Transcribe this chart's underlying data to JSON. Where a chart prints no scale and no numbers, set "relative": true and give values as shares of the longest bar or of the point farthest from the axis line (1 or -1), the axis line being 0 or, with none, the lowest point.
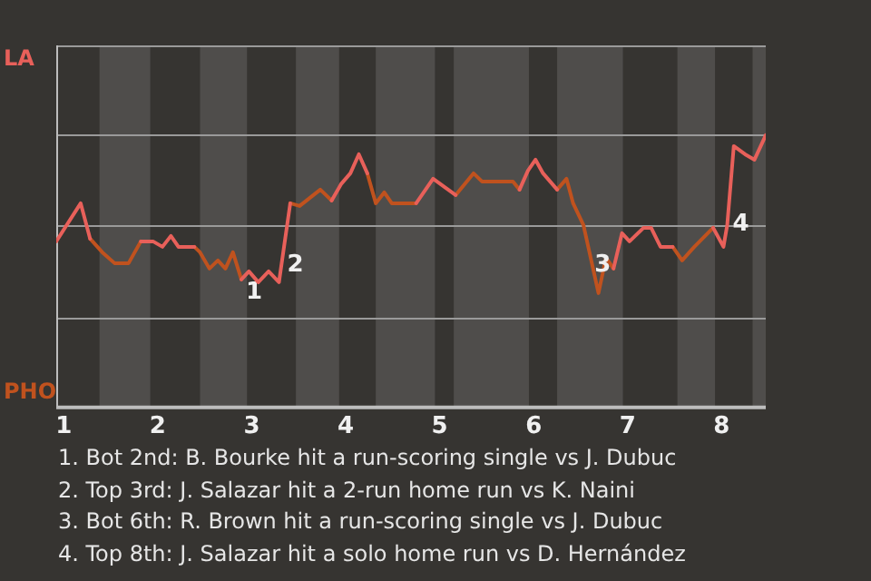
{
  "chart_data": {
    "type": "line",
    "relative": true,
    "x": [
      0.92,
      1.18,
      1.28,
      1.41,
      1.54,
      1.69,
      1.82,
      1.95,
      2.05,
      2.14,
      2.22,
      2.39,
      2.45,
      2.55,
      2.64,
      2.72,
      2.8,
      2.89,
      2.97,
      3.07,
      3.18,
      3.29,
      3.41,
      3.51,
      3.73,
      3.85,
      3.95,
      4.05,
      4.14,
      4.23,
      4.32,
      4.41,
      4.49,
      4.75,
      4.93,
      5.09,
      5.17,
      5.36,
      5.45,
      5.78,
      5.85,
      5.94,
      6.02,
      6.1,
      6.25,
      6.35,
      6.42,
      6.53,
      6.69,
      6.77,
      6.85,
      6.94,
      7.02,
      7.17,
      7.25,
      7.35,
      7.48,
      7.58,
      7.71,
      7.91,
      8.02,
      8.06,
      8.13,
      8.25,
      8.35,
      8.47
    ],
    "series": [
      {
        "color": "#e8605a",
        "values": [
          0.61,
          0.75,
          0.62,
          null,
          null,
          null,
          0.61,
          0.61,
          0.59,
          0.63,
          0.59,
          0.59,
          null,
          null,
          null,
          null,
          null,
          0.47,
          0.5,
          0.46,
          0.5,
          0.46,
          0.75,
          null,
          null,
          0.76,
          0.82,
          0.86,
          0.93,
          0.86,
          null,
          null,
          null,
          0.75,
          0.84,
          0.8,
          0.78,
          null,
          null,
          null,
          0.8,
          0.87,
          0.91,
          0.86,
          0.8,
          null,
          null,
          null,
          null,
          null,
          0.51,
          0.64,
          0.61,
          0.66,
          0.66,
          0.59,
          0.59,
          null,
          null,
          0.66,
          0.59,
          0.67,
          0.96,
          0.93,
          0.91,
          1
        ]
      },
      {
        "color": "#c0521e",
        "values": [
          null,
          null,
          0.62,
          0.57,
          0.53,
          0.53,
          0.61,
          null,
          null,
          null,
          null,
          0.59,
          0.57,
          0.51,
          0.54,
          0.51,
          0.57,
          0.47,
          null,
          null,
          null,
          null,
          0.75,
          0.74,
          0.8,
          0.76,
          null,
          null,
          null,
          0.86,
          0.75,
          0.79,
          0.75,
          0.75,
          null,
          null,
          0.78,
          0.86,
          0.83,
          0.83,
          0.8,
          null,
          null,
          null,
          0.8,
          0.84,
          0.75,
          0.67,
          0.42,
          0.55,
          0.51,
          null,
          null,
          null,
          null,
          null,
          0.59,
          0.54,
          0.59,
          0.66,
          null,
          null,
          null,
          null,
          null,
          null
        ]
      }
    ],
    "xlim": [
      0.92,
      8.47
    ],
    "xticks": [
      1,
      2,
      3,
      4,
      5,
      6,
      7,
      8
    ],
    "ref_lines": [
      {
        "axis": "y",
        "value": 0.33,
        "color": "#9a9a9a"
      },
      {
        "axis": "y",
        "value": 0.67,
        "color": "#9a9a9a"
      },
      {
        "axis": "y",
        "value": 1,
        "color": "#9a9a9a"
      },
      {
        "axis": "y",
        "value": 1.33,
        "color": "#9a9a9a"
      }
    ],
    "marker": "none",
    "line_style": "solid",
    "bands": [
      {
        "axis": "x",
        "from": 1.38,
        "to": 1.92,
        "color": "#4f4d4b"
      },
      {
        "axis": "x",
        "from": 2.45,
        "to": 2.95,
        "color": "#4f4d4b"
      },
      {
        "axis": "x",
        "from": 3.47,
        "to": 3.93,
        "color": "#4f4d4b"
      },
      {
        "axis": "x",
        "from": 4.32,
        "to": 4.95,
        "color": "#4f4d4b"
      },
      {
        "axis": "x",
        "from": 5.15,
        "to": 5.95,
        "color": "#4f4d4b"
      },
      {
        "axis": "x",
        "from": 6.25,
        "to": 6.95,
        "color": "#4f4d4b"
      },
      {
        "axis": "x",
        "from": 7.53,
        "to": 7.93,
        "color": "#4f4d4b"
      },
      {
        "axis": "x",
        "from": 8.33,
        "to": 8.47,
        "color": "#4f4d4b"
      }
    ],
    "annotations": [
      "LA",
      "PHO",
      {
        "text": "1",
        "x": 2.89,
        "y": 0.47
      },
      {
        "text": "2",
        "x": 3.33,
        "y": 0.57
      },
      {
        "text": "3",
        "x": 6.6,
        "y": 0.57
      },
      {
        "text": "4",
        "x": 8.07,
        "y": 0.72
      },
      "1. Bot 2nd: B. Bourke hit a run-scoring single vs J. Dubuc",
      "2. Top 3rd: J. Salazar hit a 2-run home run vs K. Naini",
      "3. Bot 6th: R. Brown hit a run-scoring single vs J. Dubuc",
      "4. Top 8th: J. Salazar hit a solo home run vs D. Hernández"
    ]
  }
}
